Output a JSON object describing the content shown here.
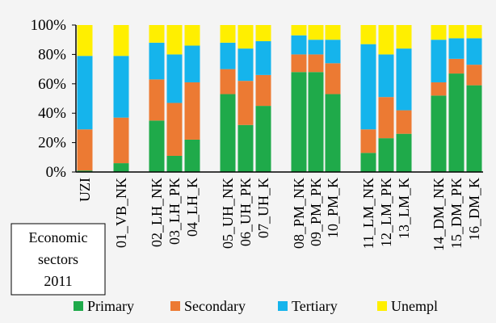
{
  "chart_data": {
    "type": "bar",
    "stacked": true,
    "ylim": [
      0,
      100
    ],
    "yticks": [
      "0%",
      "20%",
      "40%",
      "60%",
      "80%",
      "100%"
    ],
    "grid": false,
    "legend_placement": "bottom",
    "categories": [
      "UZI",
      "01_VB_NK",
      "02_LH_NK",
      "03_LH_PK",
      "04_LH_K",
      "05_UH_NK",
      "06_UH_PK",
      "07_UH_K",
      "08_PM_NK",
      "09_PM_PK",
      "10_PM_K",
      "11_LM_NK",
      "12_LM_PK",
      "13_LM_K",
      "14_DM_NK",
      "15_DM_PK",
      "16_DM_K"
    ],
    "series": [
      {
        "name": "Primary",
        "color": "#1faa4a",
        "values": [
          1,
          6,
          35,
          11,
          22,
          53,
          32,
          45,
          68,
          68,
          53,
          13,
          23,
          26,
          52,
          67,
          59
        ]
      },
      {
        "name": "Secondary",
        "color": "#ec7a33",
        "values": [
          28,
          31,
          28,
          36,
          39,
          17,
          30,
          21,
          12,
          12,
          21,
          16,
          28,
          16,
          9,
          10,
          14
        ]
      },
      {
        "name": "Tertiary",
        "color": "#15b4ec",
        "values": [
          50,
          42,
          25,
          33,
          25,
          18,
          22,
          23,
          13,
          10,
          16,
          58,
          29,
          42,
          29,
          14,
          18
        ]
      },
      {
        "name": "Unempl",
        "color": "#ffef00",
        "values": [
          21,
          21,
          12,
          20,
          14,
          12,
          16,
          11,
          7,
          10,
          10,
          13,
          20,
          16,
          10,
          9,
          9
        ]
      }
    ],
    "note_box": [
      "Economic",
      "sectors",
      "2011"
    ]
  }
}
